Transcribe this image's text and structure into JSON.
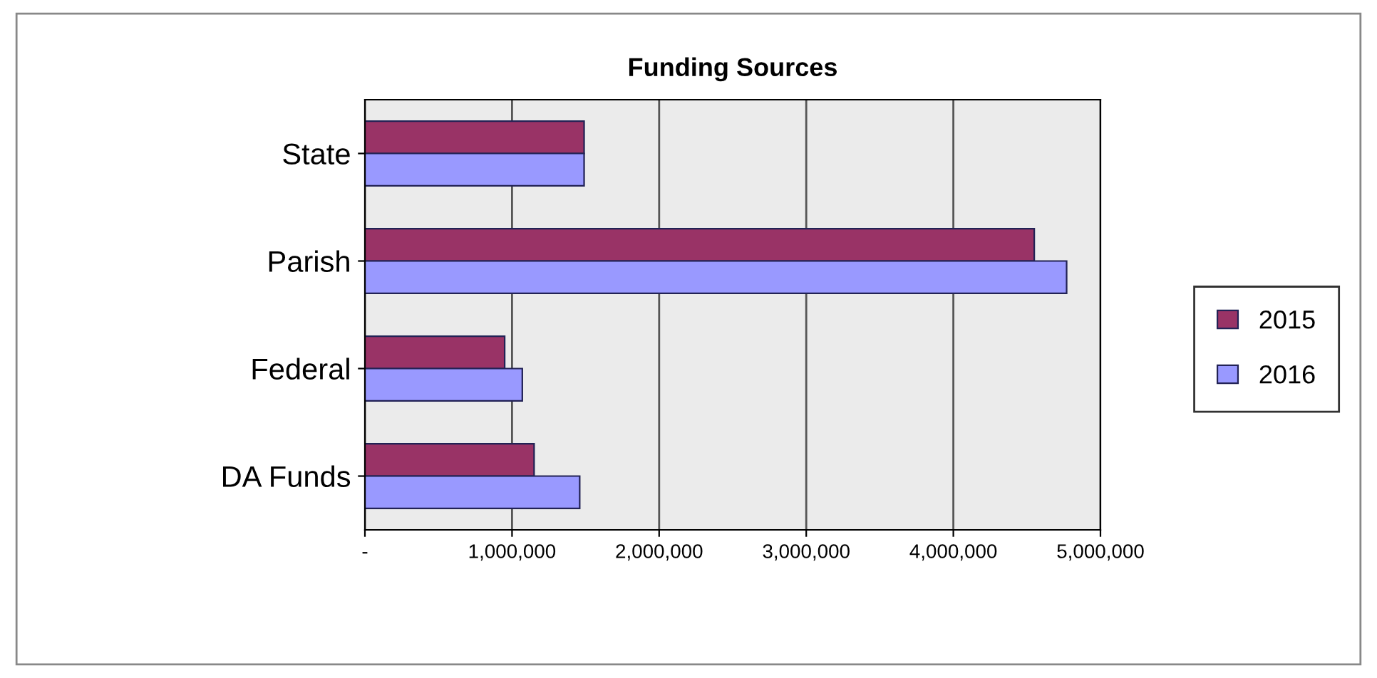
{
  "chart_data": {
    "type": "bar",
    "orientation": "horizontal",
    "title": "Funding Sources",
    "categories": [
      "State",
      "Parish",
      "Federal",
      "DA Funds"
    ],
    "series": [
      {
        "name": "2015",
        "color": "#993366",
        "values": [
          1490000,
          4550000,
          950000,
          1150000
        ]
      },
      {
        "name": "2016",
        "color": "#9999ff",
        "values": [
          1490000,
          4770000,
          1070000,
          1460000
        ]
      }
    ],
    "xlim": [
      0,
      5000000
    ],
    "xticks": [
      {
        "value": 0,
        "label": "-"
      },
      {
        "value": 1000000,
        "label": "1,000,000"
      },
      {
        "value": 2000000,
        "label": "2,000,000"
      },
      {
        "value": 3000000,
        "label": "3,000,000"
      },
      {
        "value": 4000000,
        "label": "4,000,000"
      },
      {
        "value": 5000000,
        "label": "5,000,000"
      }
    ],
    "grid": "x",
    "legend": "right"
  }
}
